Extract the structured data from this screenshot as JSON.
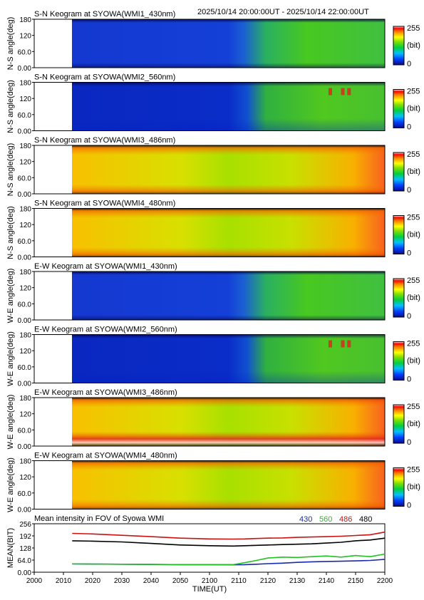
{
  "header": {
    "time_range": "2025/10/14 20:00:00UT - 2025/10/14 22:00:00UT"
  },
  "colorbar": {
    "max_label": "255",
    "unit_label": "(bit)",
    "min_label": "0"
  },
  "keograms": [
    {
      "title": "S-N Keogram at SYOWA(WMI1_430nm)",
      "ylabel": "N-S angle(deg)",
      "yticks": [
        "0.00",
        "60.0",
        "120",
        "180"
      ],
      "style": "blue_green"
    },
    {
      "title": "S-N Keogram at SYOWA(WMI2_560nm)",
      "ylabel": "N-S angle(deg)",
      "yticks": [
        "0.00",
        "60.0",
        "120",
        "180"
      ],
      "style": "blue_aurora"
    },
    {
      "title": "S-N Keogram at SYOWA(WMI3_486nm)",
      "ylabel": "N-S angle(deg)",
      "yticks": [
        "0.00",
        "60.0",
        "120",
        "180"
      ],
      "style": "warm"
    },
    {
      "title": "S-N Keogram at SYOWA(WMI4_480nm)",
      "ylabel": "N-S angle(deg)",
      "yticks": [
        "0.00",
        "60.0",
        "120",
        "180"
      ],
      "style": "warm"
    },
    {
      "title": "E-W Keogram at SYOWA(WMI1_430nm)",
      "ylabel": "W-E angle(deg)",
      "yticks": [
        "0.00",
        "60.0",
        "120",
        "180"
      ],
      "style": "blue_green"
    },
    {
      "title": "E-W Keogram at SYOWA(WMI2_560nm)",
      "ylabel": "W-E angle(deg)",
      "yticks": [
        "0.00",
        "60.0",
        "120",
        "180"
      ],
      "style": "blue_aurora"
    },
    {
      "title": "E-W Keogram at SYOWA(WMI3_486nm)",
      "ylabel": "W-E angle(deg)",
      "yticks": [
        "0.00",
        "60.0",
        "120",
        "180"
      ],
      "style": "warm_hot"
    },
    {
      "title": "E-W Keogram at SYOWA(WMI4_480nm)",
      "ylabel": "W-E angle(deg)",
      "yticks": [
        "0.00",
        "60.0",
        "120",
        "180"
      ],
      "style": "warm"
    }
  ],
  "mean_panel": {
    "title": "Mean intensity in FOV of Syowa WMI",
    "ylabel": "MEAN(BIT)",
    "yticks": [
      "0.00",
      "64.0",
      "128",
      "192",
      "256"
    ],
    "legend": [
      {
        "label": "430",
        "color": "#1a2aa8"
      },
      {
        "label": "560",
        "color": "#22c022"
      },
      {
        "label": "486",
        "color": "#cc1111"
      },
      {
        "label": "480",
        "color": "#000000"
      }
    ]
  },
  "xaxis": {
    "label": "TIME(UT)",
    "ticks": [
      "2000",
      "2010",
      "2020",
      "2030",
      "2040",
      "2050",
      "2100",
      "2110",
      "2120",
      "2130",
      "2140",
      "2150",
      "2200"
    ]
  },
  "chart_data": {
    "type": "line",
    "title": "Mean intensity in FOV of Syowa WMI",
    "xlabel": "TIME(UT)",
    "ylabel": "MEAN(BIT)",
    "xlim": [
      "20:00",
      "22:00"
    ],
    "ylim": [
      0,
      256
    ],
    "x": [
      "20:13",
      "20:20",
      "20:30",
      "20:40",
      "20:50",
      "21:00",
      "21:08",
      "21:12",
      "21:16",
      "21:20",
      "21:25",
      "21:30",
      "21:35",
      "21:40",
      "21:45",
      "21:50",
      "21:55",
      "22:00"
    ],
    "series": [
      {
        "name": "430",
        "values": [
          44,
          43,
          42,
          41,
          40,
          40,
          39,
          40,
          42,
          45,
          48,
          52,
          55,
          57,
          58,
          60,
          62,
          68
        ]
      },
      {
        "name": "560",
        "values": [
          44,
          43,
          42,
          41,
          40,
          40,
          40,
          50,
          62,
          75,
          80,
          78,
          82,
          86,
          80,
          88,
          82,
          96
        ]
      },
      {
        "name": "486",
        "values": [
          205,
          202,
          195,
          188,
          180,
          176,
          175,
          176,
          178,
          180,
          181,
          184,
          186,
          188,
          190,
          194,
          198,
          212
        ]
      },
      {
        "name": "480",
        "values": [
          166,
          164,
          160,
          152,
          144,
          140,
          138,
          140,
          142,
          144,
          146,
          148,
          150,
          154,
          158,
          166,
          170,
          180
        ]
      }
    ]
  }
}
